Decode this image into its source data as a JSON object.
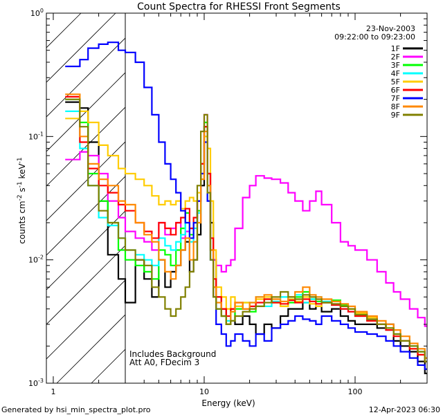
{
  "chart_data": {
    "type": "line",
    "title": "Count Spectra for RHESSI Front Segments",
    "xlabel": "Energy (keV)",
    "ylabel_base": "counts cm",
    "ylabel_exp1": "-2",
    "ylabel_mid": " s",
    "ylabel_exp2": "-1",
    "ylabel_tail": " keV",
    "ylabel_exp3": "-1",
    "xscale": "log",
    "yscale": "log",
    "xlim": [
      0.9,
      300
    ],
    "ylim": [
      0.001,
      1.0
    ],
    "x_ticks": [
      {
        "value": 1,
        "label": "1"
      },
      {
        "value": 10,
        "label": "10"
      },
      {
        "value": 100,
        "label": "100"
      }
    ],
    "y_ticks": [
      {
        "value": 1.0,
        "mant": "10",
        "exp": "0"
      },
      {
        "value": 0.1,
        "mant": "10",
        "exp": "-1"
      },
      {
        "value": 0.01,
        "mant": "10",
        "exp": "-2"
      },
      {
        "value": 0.001,
        "mant": "10",
        "exp": "-3"
      }
    ],
    "date": "23-Nov-2003",
    "time_range": "09:22:00 to 09:23:00",
    "hatched_region": {
      "from": 0.9,
      "to": 3.0
    },
    "annotations": [
      "Includes Background",
      "Att A0, FDecim 3"
    ],
    "footer_left": "Generated by hsi_min_spectra_plot.pro",
    "footer_right": "12-Apr-2023 06:30",
    "series": [
      {
        "name": "1F",
        "color": "#000000",
        "x": [
          1.2,
          1.5,
          1.7,
          2.0,
          2.3,
          2.7,
          3.0,
          3.5,
          4.0,
          4.5,
          5.0,
          5.5,
          6.0,
          6.5,
          7.0,
          7.5,
          8.0,
          8.5,
          9.0,
          9.5,
          10.0,
          10.5,
          11.0,
          11.5,
          12.0,
          13.0,
          14.0,
          15.0,
          16.0,
          18.0,
          20.0,
          22.0,
          25.0,
          28.0,
          32.0,
          36.0,
          40.0,
          45.0,
          50.0,
          55.0,
          60.0,
          70.0,
          80.0,
          90.0,
          100.0,
          120.0,
          140.0,
          160.0,
          180.0,
          200.0,
          230.0,
          260.0,
          290.0
        ],
        "y": [
          0.19,
          0.17,
          0.09,
          0.03,
          0.011,
          0.007,
          0.0045,
          0.01,
          0.007,
          0.005,
          0.01,
          0.006,
          0.008,
          0.009,
          0.012,
          0.014,
          0.008,
          0.01,
          0.016,
          0.04,
          0.12,
          0.05,
          0.02,
          0.01,
          0.005,
          0.004,
          0.003,
          0.004,
          0.003,
          0.0035,
          0.003,
          0.0025,
          0.003,
          0.0028,
          0.0035,
          0.004,
          0.004,
          0.0045,
          0.004,
          0.0042,
          0.0038,
          0.004,
          0.0035,
          0.0032,
          0.003,
          0.003,
          0.0028,
          0.003,
          0.0022,
          0.002,
          0.0018,
          0.0015,
          0.0012
        ]
      },
      {
        "name": "2F",
        "color": "#ff00ff",
        "x": [
          1.2,
          1.5,
          1.7,
          2.0,
          2.3,
          2.7,
          3.0,
          3.5,
          4.0,
          4.5,
          5.0,
          5.5,
          6.0,
          6.5,
          7.0,
          7.5,
          8.0,
          8.5,
          9.0,
          9.5,
          10.0,
          10.5,
          11.0,
          11.5,
          12.0,
          13.0,
          14.0,
          15.0,
          16.0,
          18.0,
          20.0,
          22.0,
          25.0,
          28.0,
          32.0,
          36.0,
          40.0,
          45.0,
          50.0,
          55.0,
          60.0,
          70.0,
          80.0,
          90.0,
          100.0,
          120.0,
          140.0,
          160.0,
          180.0,
          200.0,
          230.0,
          260.0,
          290.0
        ],
        "y": [
          0.065,
          0.075,
          0.07,
          0.05,
          0.03,
          0.022,
          0.017,
          0.015,
          0.014,
          0.012,
          0.02,
          0.016,
          0.018,
          0.02,
          0.015,
          0.017,
          0.018,
          0.02,
          0.03,
          0.06,
          0.15,
          0.04,
          0.012,
          0.01,
          0.009,
          0.008,
          0.009,
          0.01,
          0.018,
          0.032,
          0.04,
          0.048,
          0.046,
          0.045,
          0.042,
          0.035,
          0.03,
          0.025,
          0.03,
          0.036,
          0.028,
          0.02,
          0.014,
          0.013,
          0.012,
          0.01,
          0.008,
          0.0065,
          0.0055,
          0.0048,
          0.004,
          0.0034,
          0.0029
        ]
      },
      {
        "name": "3F",
        "color": "#00ff00",
        "x": [
          1.2,
          1.5,
          1.7,
          2.0,
          2.3,
          2.7,
          3.0,
          3.5,
          4.0,
          4.5,
          5.0,
          5.5,
          6.0,
          6.5,
          7.0,
          7.5,
          8.0,
          8.5,
          9.0,
          9.5,
          10.0,
          10.5,
          11.0,
          11.5,
          12.0,
          13.0,
          14.0,
          15.0,
          16.0,
          18.0,
          20.0,
          22.0,
          25.0,
          28.0,
          32.0,
          36.0,
          40.0,
          45.0,
          50.0,
          55.0,
          60.0,
          70.0,
          80.0,
          90.0,
          100.0,
          120.0,
          140.0,
          160.0,
          180.0,
          200.0,
          230.0,
          260.0,
          290.0
        ],
        "y": [
          0.2,
          0.13,
          0.05,
          0.03,
          0.02,
          0.012,
          0.01,
          0.009,
          0.008,
          0.007,
          0.012,
          0.011,
          0.009,
          0.012,
          0.018,
          0.024,
          0.016,
          0.02,
          0.025,
          0.06,
          0.13,
          0.04,
          0.012,
          0.006,
          0.004,
          0.0035,
          0.003,
          0.0032,
          0.004,
          0.0045,
          0.0038,
          0.0042,
          0.0048,
          0.0045,
          0.0042,
          0.0045,
          0.005,
          0.0055,
          0.0048,
          0.0046,
          0.0045,
          0.0047,
          0.0043,
          0.004,
          0.0036,
          0.0032,
          0.003,
          0.0028,
          0.0025,
          0.0022,
          0.002,
          0.0018,
          0.0015
        ]
      },
      {
        "name": "4F",
        "color": "#00ffff",
        "x": [
          1.2,
          1.5,
          1.7,
          2.0,
          2.3,
          2.7,
          3.0,
          3.5,
          4.0,
          4.5,
          5.0,
          5.5,
          6.0,
          6.5,
          7.0,
          7.5,
          8.0,
          8.5,
          9.0,
          9.5,
          10.0,
          10.5,
          11.0,
          11.5,
          12.0,
          13.0,
          14.0,
          15.0,
          16.0,
          18.0,
          20.0,
          22.0,
          25.0,
          28.0,
          32.0,
          36.0,
          40.0,
          45.0,
          50.0,
          55.0,
          60.0,
          70.0,
          80.0,
          90.0,
          100.0,
          120.0,
          140.0,
          160.0,
          180.0,
          200.0,
          230.0,
          260.0,
          290.0
        ],
        "y": [
          0.16,
          0.08,
          0.04,
          0.022,
          0.019,
          0.015,
          0.012,
          0.011,
          0.01,
          0.009,
          0.015,
          0.013,
          0.012,
          0.014,
          0.016,
          0.02,
          0.014,
          0.018,
          0.024,
          0.05,
          0.1,
          0.03,
          0.01,
          0.005,
          0.004,
          0.0035,
          0.0032,
          0.0038,
          0.0042,
          0.004,
          0.0045,
          0.005,
          0.0042,
          0.0046,
          0.005,
          0.0048,
          0.0052,
          0.0045,
          0.0048,
          0.005,
          0.0046,
          0.0043,
          0.004,
          0.0038,
          0.0035,
          0.0032,
          0.003,
          0.0027,
          0.0025,
          0.0022,
          0.002,
          0.0018,
          0.0016
        ]
      },
      {
        "name": "5F",
        "color": "#ffcc00",
        "x": [
          1.2,
          1.5,
          1.7,
          2.0,
          2.3,
          2.7,
          3.0,
          3.5,
          4.0,
          4.5,
          5.0,
          5.5,
          6.0,
          6.5,
          7.0,
          7.5,
          8.0,
          8.5,
          9.0,
          9.5,
          10.0,
          10.5,
          11.0,
          11.5,
          12.0,
          13.0,
          14.0,
          15.0,
          16.0,
          18.0,
          20.0,
          22.0,
          25.0,
          28.0,
          32.0,
          36.0,
          40.0,
          45.0,
          50.0,
          55.0,
          60.0,
          70.0,
          80.0,
          90.0,
          100.0,
          120.0,
          140.0,
          160.0,
          180.0,
          200.0,
          230.0,
          260.0,
          290.0
        ],
        "y": [
          0.14,
          0.16,
          0.13,
          0.085,
          0.07,
          0.055,
          0.05,
          0.045,
          0.04,
          0.033,
          0.028,
          0.03,
          0.028,
          0.03,
          0.026,
          0.03,
          0.032,
          0.03,
          0.035,
          0.05,
          0.1,
          0.08,
          0.03,
          0.012,
          0.006,
          0.005,
          0.004,
          0.005,
          0.0042,
          0.0045,
          0.004,
          0.0048,
          0.005,
          0.0045,
          0.0042,
          0.0048,
          0.0046,
          0.005,
          0.0044,
          0.0042,
          0.0045,
          0.0046,
          0.0042,
          0.004,
          0.0037,
          0.0034,
          0.003,
          0.0028,
          0.0025,
          0.0022,
          0.0019,
          0.0017,
          0.0015
        ]
      },
      {
        "name": "6F",
        "color": "#ff0000",
        "x": [
          1.2,
          1.5,
          1.7,
          2.0,
          2.3,
          2.7,
          3.0,
          3.5,
          4.0,
          4.5,
          5.0,
          5.5,
          6.0,
          6.5,
          7.0,
          7.5,
          8.0,
          8.5,
          9.0,
          9.5,
          10.0,
          10.5,
          11.0,
          11.5,
          12.0,
          13.0,
          14.0,
          15.0,
          16.0,
          18.0,
          20.0,
          22.0,
          25.0,
          28.0,
          32.0,
          36.0,
          40.0,
          45.0,
          50.0,
          55.0,
          60.0,
          70.0,
          80.0,
          90.0,
          100.0,
          120.0,
          140.0,
          160.0,
          180.0,
          200.0,
          230.0,
          260.0,
          290.0
        ],
        "y": [
          0.21,
          0.09,
          0.055,
          0.04,
          0.035,
          0.028,
          0.025,
          0.02,
          0.017,
          0.015,
          0.02,
          0.018,
          0.016,
          0.02,
          0.022,
          0.026,
          0.018,
          0.022,
          0.03,
          0.06,
          0.12,
          0.05,
          0.015,
          0.007,
          0.005,
          0.004,
          0.0035,
          0.004,
          0.0045,
          0.004,
          0.0042,
          0.0045,
          0.0048,
          0.0045,
          0.0044,
          0.0047,
          0.0045,
          0.0048,
          0.0046,
          0.0044,
          0.0045,
          0.0043,
          0.004,
          0.0038,
          0.0035,
          0.0032,
          0.003,
          0.0027,
          0.0024,
          0.0022,
          0.0019,
          0.0017,
          0.0015
        ]
      },
      {
        "name": "7F",
        "color": "#0000ff",
        "x": [
          1.2,
          1.5,
          1.7,
          2.0,
          2.3,
          2.7,
          3.0,
          3.5,
          4.0,
          4.5,
          5.0,
          5.5,
          6.0,
          6.5,
          7.0,
          7.5,
          8.0,
          8.5,
          9.0,
          9.5,
          10.0,
          10.5,
          11.0,
          11.5,
          12.0,
          13.0,
          14.0,
          15.0,
          16.0,
          18.0,
          20.0,
          22.0,
          25.0,
          28.0,
          32.0,
          36.0,
          40.0,
          45.0,
          50.0,
          55.0,
          60.0,
          70.0,
          80.0,
          90.0,
          100.0,
          120.0,
          140.0,
          160.0,
          180.0,
          200.0,
          230.0,
          260.0,
          290.0
        ],
        "y": [
          0.37,
          0.42,
          0.52,
          0.56,
          0.58,
          0.5,
          0.48,
          0.4,
          0.25,
          0.15,
          0.09,
          0.06,
          0.045,
          0.035,
          0.025,
          0.02,
          0.015,
          0.02,
          0.03,
          0.05,
          0.09,
          0.03,
          0.01,
          0.005,
          0.003,
          0.0025,
          0.002,
          0.0022,
          0.0025,
          0.0022,
          0.002,
          0.0025,
          0.0022,
          0.0028,
          0.003,
          0.0032,
          0.0035,
          0.0033,
          0.0032,
          0.003,
          0.0035,
          0.0032,
          0.003,
          0.0028,
          0.0026,
          0.0025,
          0.0024,
          0.0022,
          0.002,
          0.0018,
          0.0016,
          0.0014,
          0.0013
        ]
      },
      {
        "name": "8F",
        "color": "#ff8800",
        "x": [
          1.2,
          1.5,
          1.7,
          2.0,
          2.3,
          2.7,
          3.0,
          3.5,
          4.0,
          4.5,
          5.0,
          5.5,
          6.0,
          6.5,
          7.0,
          7.5,
          8.0,
          8.5,
          9.0,
          9.5,
          10.0,
          10.5,
          11.0,
          11.5,
          12.0,
          13.0,
          14.0,
          15.0,
          16.0,
          18.0,
          20.0,
          22.0,
          25.0,
          28.0,
          32.0,
          36.0,
          40.0,
          45.0,
          50.0,
          55.0,
          60.0,
          70.0,
          80.0,
          90.0,
          100.0,
          120.0,
          140.0,
          160.0,
          180.0,
          200.0,
          230.0,
          260.0,
          290.0
        ],
        "y": [
          0.22,
          0.1,
          0.06,
          0.045,
          0.04,
          0.03,
          0.028,
          0.02,
          0.016,
          0.014,
          0.01,
          0.008,
          0.007,
          0.009,
          0.012,
          0.015,
          0.01,
          0.014,
          0.02,
          0.045,
          0.11,
          0.04,
          0.012,
          0.006,
          0.0045,
          0.0035,
          0.003,
          0.0038,
          0.0045,
          0.004,
          0.0045,
          0.005,
          0.0052,
          0.0048,
          0.0046,
          0.005,
          0.0055,
          0.006,
          0.0052,
          0.005,
          0.0048,
          0.0046,
          0.0044,
          0.0042,
          0.0038,
          0.0035,
          0.0032,
          0.003,
          0.0027,
          0.0024,
          0.0021,
          0.0019,
          0.0016
        ]
      },
      {
        "name": "9F",
        "color": "#808000",
        "x": [
          1.2,
          1.5,
          1.7,
          2.0,
          2.3,
          2.7,
          3.0,
          3.5,
          4.0,
          4.5,
          5.0,
          5.5,
          6.0,
          6.5,
          7.0,
          7.5,
          8.0,
          8.5,
          9.0,
          9.5,
          10.0,
          10.5,
          11.0,
          11.5,
          12.0,
          13.0,
          14.0,
          15.0,
          16.0,
          18.0,
          20.0,
          22.0,
          25.0,
          28.0,
          32.0,
          36.0,
          40.0,
          45.0,
          50.0,
          55.0,
          60.0,
          70.0,
          80.0,
          90.0,
          100.0,
          120.0,
          140.0,
          160.0,
          180.0,
          200.0,
          230.0,
          260.0,
          290.0
        ],
        "y": [
          0.2,
          0.12,
          0.04,
          0.025,
          0.02,
          0.015,
          0.012,
          0.01,
          0.009,
          0.006,
          0.005,
          0.004,
          0.0035,
          0.004,
          0.005,
          0.006,
          0.008,
          0.01,
          0.04,
          0.11,
          0.15,
          0.035,
          0.01,
          0.005,
          0.004,
          0.0035,
          0.003,
          0.0032,
          0.0035,
          0.0038,
          0.004,
          0.0042,
          0.0045,
          0.005,
          0.0055,
          0.005,
          0.0048,
          0.0052,
          0.005,
          0.0048,
          0.0045,
          0.0044,
          0.0042,
          0.004,
          0.0036,
          0.0033,
          0.003,
          0.0028,
          0.0025,
          0.0022,
          0.002,
          0.0018,
          0.0015
        ]
      }
    ]
  }
}
